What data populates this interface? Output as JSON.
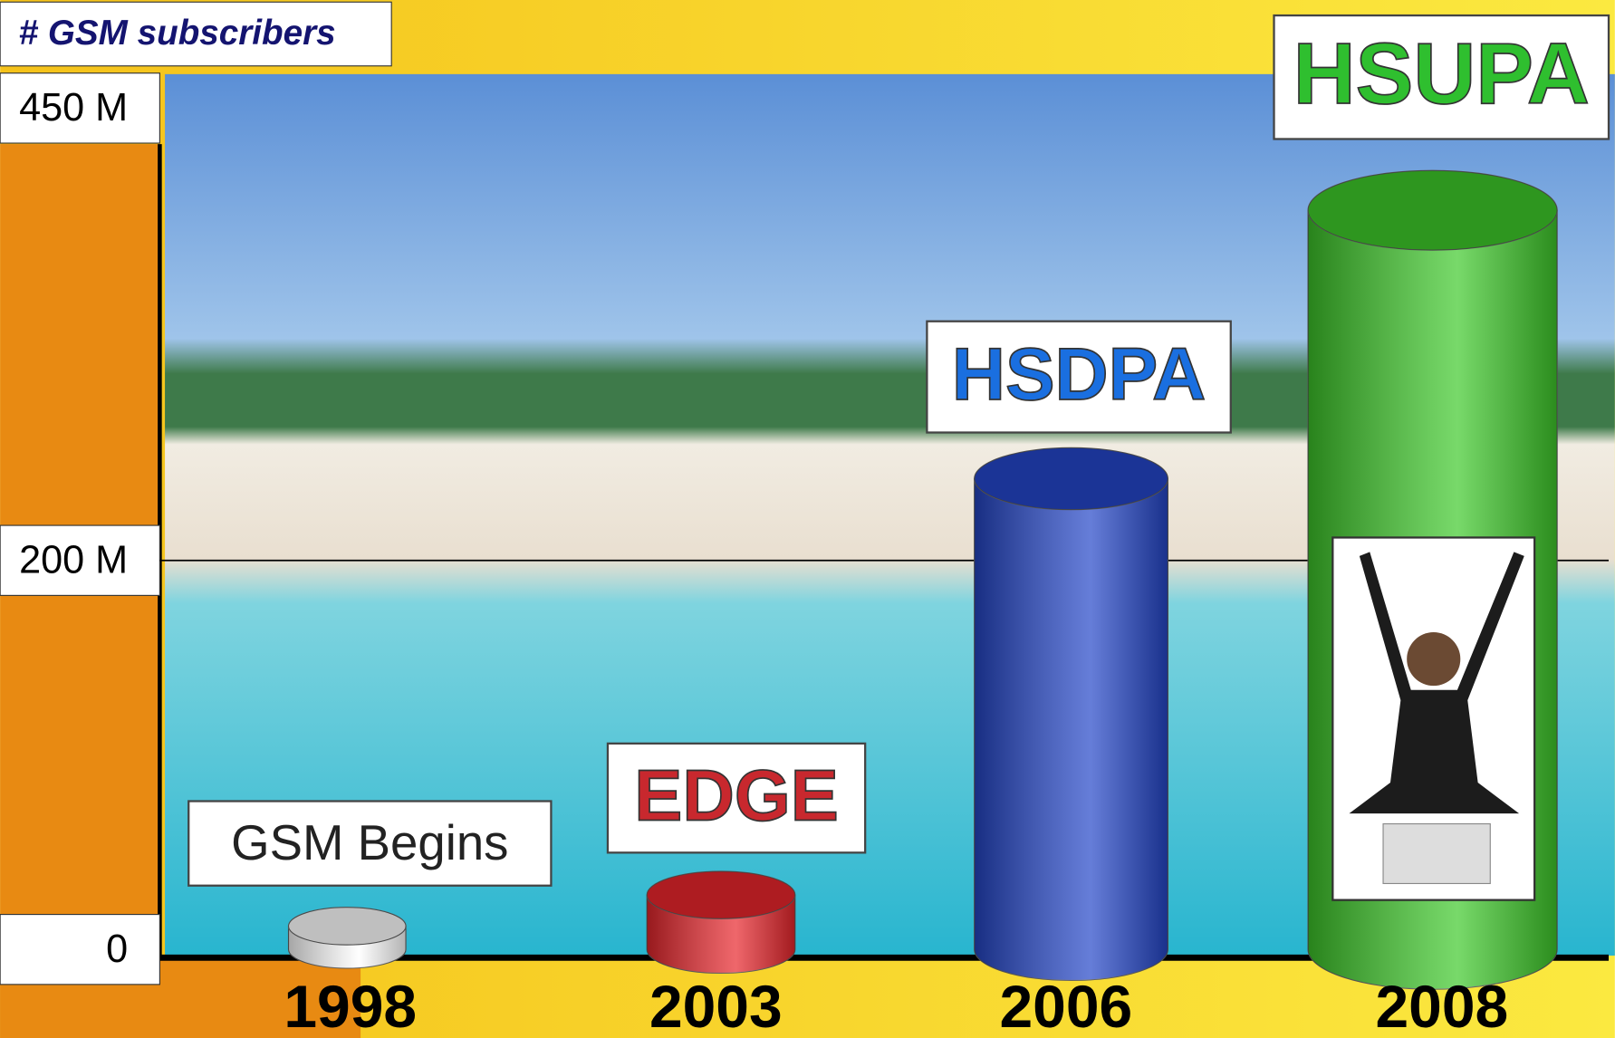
{
  "chart_data": {
    "type": "cylinder",
    "title": "# GSM subscribers",
    "categories": [
      "1998",
      "2003",
      "2006",
      "2008"
    ],
    "values": [
      12,
      28,
      242,
      380
    ],
    "labels": [
      "GSM Begins",
      "EDGE",
      "HSDPA",
      "HSUPA"
    ],
    "colors": [
      "#ffffff",
      "#e8262c",
      "#2446c8",
      "#3ec92a"
    ],
    "label_colors": [
      "#222222",
      "#c8282e",
      "#1a6fe0",
      "#2fbf2f"
    ],
    "ylim": [
      0,
      450
    ],
    "yticks": [
      0,
      {
        "value": 200,
        "label": "200 M"
      },
      {
        "value": 450,
        "label": "450 M"
      }
    ],
    "grid": true
  }
}
